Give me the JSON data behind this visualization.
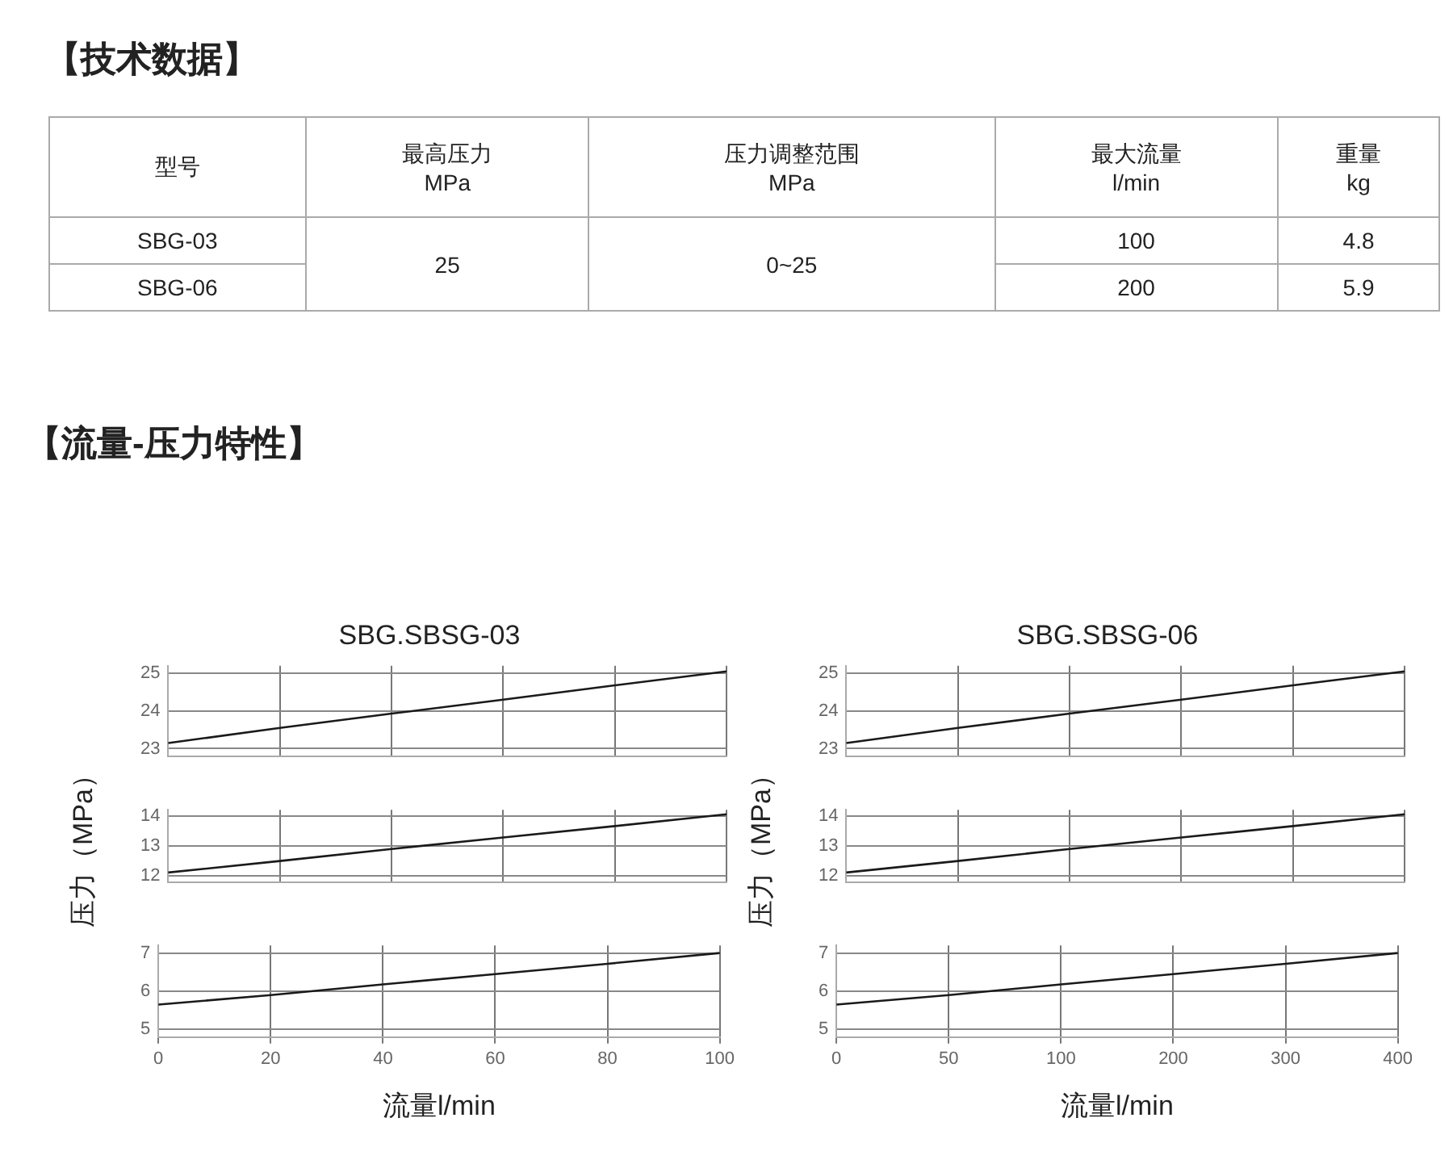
{
  "chart_data": [
    {
      "type": "other",
      "title": "【技术数据】",
      "annotations": [
        "型号",
        "最高压力\nMPa",
        "压力调整范围\nMPa",
        "最大流量\nl/min",
        "重量\nkg",
        "SBG-03",
        "25",
        "0~25",
        "100",
        "4.8",
        "SBG-06",
        "200",
        "5.9"
      ]
    },
    {
      "type": "other",
      "title": "【流量-压力特性】"
    },
    {
      "type": "line",
      "title": "SBG.SBSG-03",
      "categories": [
        "0",
        "20",
        "40",
        "60",
        "80",
        "100"
      ],
      "series": [
        {
          "color": "#1a1a1a",
          "values": [
            23.15,
            23.55,
            23.93,
            24.3,
            24.68,
            25.05
          ]
        }
      ],
      "ylim": [
        22.8,
        25.2
      ],
      "yticks": [
        23,
        24,
        25
      ],
      "grid": true,
      "tick_labels": "y",
      "marker": "none"
    },
    {
      "type": "line",
      "ylabel": "压力（MPa）",
      "categories": [
        "0",
        "20",
        "40",
        "60",
        "80",
        "100"
      ],
      "series": [
        {
          "color": "#1a1a1a",
          "values": [
            12.12,
            12.5,
            12.9,
            13.28,
            13.66,
            14.05
          ]
        }
      ],
      "ylim": [
        11.8,
        14.2
      ],
      "yticks": [
        12,
        13,
        14
      ],
      "grid": true,
      "tick_labels": "y",
      "marker": "none"
    },
    {
      "type": "line",
      "xlabel": "流量l/min",
      "categories": [
        "0",
        "20",
        "40",
        "60",
        "80",
        "100"
      ],
      "series": [
        {
          "color": "#1a1a1a",
          "values": [
            5.65,
            5.9,
            6.18,
            6.45,
            6.72,
            7.0
          ]
        }
      ],
      "ylim": [
        4.8,
        7.2
      ],
      "yticks": [
        5,
        6,
        7
      ],
      "grid": true,
      "marker": "none"
    },
    {
      "type": "line",
      "title": "SBG.SBSG-06",
      "categories": [
        "0",
        "50",
        "100",
        "200",
        "300",
        "400"
      ],
      "series": [
        {
          "color": "#1a1a1a",
          "values": [
            23.15,
            23.55,
            23.93,
            24.3,
            24.68,
            25.05
          ]
        }
      ],
      "ylim": [
        22.8,
        25.2
      ],
      "yticks": [
        23,
        24,
        25
      ],
      "grid": true,
      "tick_labels": "y",
      "marker": "none"
    },
    {
      "type": "line",
      "ylabel": "压力（MPa）",
      "categories": [
        "0",
        "50",
        "100",
        "200",
        "300",
        "400"
      ],
      "series": [
        {
          "color": "#1a1a1a",
          "values": [
            12.12,
            12.5,
            12.9,
            13.28,
            13.66,
            14.05
          ]
        }
      ],
      "ylim": [
        11.8,
        14.2
      ],
      "yticks": [
        12,
        13,
        14
      ],
      "grid": true,
      "tick_labels": "y",
      "marker": "none"
    },
    {
      "type": "line",
      "xlabel": "流量l/min",
      "categories": [
        "0",
        "50",
        "100",
        "200",
        "300",
        "400"
      ],
      "series": [
        {
          "color": "#1a1a1a",
          "values": [
            5.65,
            5.9,
            6.18,
            6.45,
            6.72,
            7.0
          ]
        }
      ],
      "ylim": [
        4.8,
        7.2
      ],
      "yticks": [
        5,
        6,
        7
      ],
      "grid": true,
      "marker": "none"
    }
  ]
}
